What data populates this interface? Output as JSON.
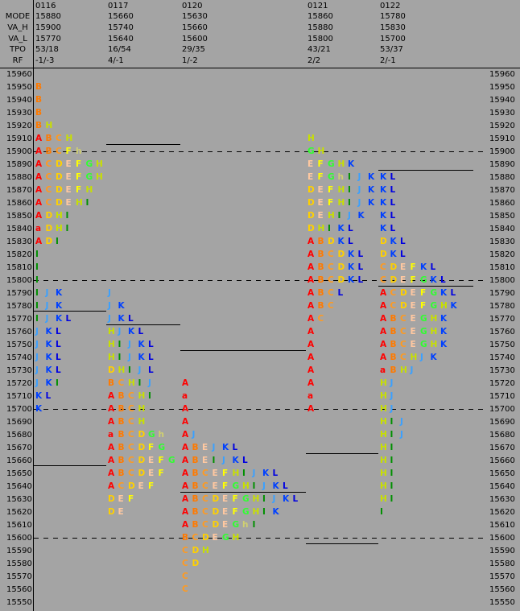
{
  "header_labels": [
    "MODE",
    "VA_H",
    "VA_L",
    "TPO",
    "RF"
  ],
  "letter_colors": {
    "A": "#ff0000",
    "a": "#ff0000",
    "B": "#ff7a00",
    "C": "#ff9a20",
    "D": "#ffd000",
    "E": "#ffc8a0",
    "F": "#ffff00",
    "G": "#30ff30",
    "H": "#c8e000",
    "h": "#d0d070",
    "I": "#009000",
    "J": "#3aa0ff",
    "K": "#0040ff",
    "L": "#0000e0"
  },
  "prices": [
    15960,
    15950,
    15940,
    15930,
    15920,
    15910,
    15900,
    15890,
    15880,
    15870,
    15860,
    15850,
    15840,
    15830,
    15820,
    15810,
    15800,
    15790,
    15780,
    15770,
    15760,
    15750,
    15740,
    15730,
    15720,
    15710,
    15700,
    15690,
    15680,
    15670,
    15660,
    15650,
    15640,
    15630,
    15620,
    15610,
    15600,
    15590,
    15580,
    15570,
    15560,
    15550
  ],
  "profiles": [
    {
      "date": "0116",
      "stats": [
        "15880",
        "15900",
        "15770",
        "53/18",
        "-1/-3"
      ],
      "rows": [
        null,
        "B",
        "B",
        "B",
        "BH",
        "ABCH",
        "ABCFh",
        "ACDEFGH",
        "ACDEFGH",
        "ACDEFH",
        "ACDEHI",
        "ADHI",
        "aDHI",
        "ADI",
        "I",
        "I",
        "I",
        "IJK",
        "IJK",
        "IJKL",
        "JKL",
        "JKL",
        "JKL",
        "JKL",
        "JKI",
        "KL",
        "K",
        null,
        null,
        null,
        null,
        null,
        null,
        null,
        null,
        null,
        null,
        null,
        null,
        null,
        null,
        null
      ]
    },
    {
      "date": "0117",
      "stats": [
        "15660",
        "15740",
        "15640",
        "16/54",
        "4/-1"
      ],
      "rows": [
        null,
        null,
        null,
        null,
        null,
        null,
        null,
        null,
        null,
        null,
        null,
        null,
        null,
        null,
        null,
        null,
        null,
        "J",
        "JK",
        "JKL",
        "HJKL",
        "HIJKL",
        "HIJKL",
        "DHIJL",
        "BCHIJ",
        "ABCHI",
        "ABCH",
        "ABCH",
        "aBCDGh",
        "ABCDFG",
        "ABCDEFG",
        "ABCDEF",
        "ACDEF",
        "DEF",
        "DE",
        null,
        null,
        null,
        null,
        null,
        null,
        null
      ]
    },
    {
      "date": "0120",
      "stats": [
        "15630",
        "15660",
        "15600",
        "29/35",
        "1/-2"
      ],
      "rows": [
        null,
        null,
        null,
        null,
        null,
        null,
        null,
        null,
        null,
        null,
        null,
        null,
        null,
        null,
        null,
        null,
        null,
        null,
        null,
        null,
        null,
        null,
        null,
        null,
        "A",
        "a",
        "A",
        "A",
        "AJ",
        "ABEJKL",
        "ABEIJKL",
        "ABCEFHIJKL",
        "ABCEFGHIJKL",
        "ABCDEFGHIJKL",
        "ABCDEFGHIK",
        "ABCDEGhI",
        "BCDEGH",
        "CDH",
        "CD",
        "C",
        "C",
        null
      ]
    },
    {
      "date": "0121",
      "stats": [
        "15860",
        "15880",
        "15800",
        "43/21",
        "2/2"
      ],
      "rows": [
        null,
        null,
        null,
        null,
        null,
        "H",
        "GH",
        "EFGHK",
        "EFGhIJK",
        "DEFHIJK",
        "DEFHIJK",
        "DEHIJK",
        "DHIKL",
        "ABDKL",
        "ABCDKL",
        "ABCDKL",
        "ABCDKL",
        "ABCL",
        "ABC",
        "AC",
        "A",
        "A",
        "A",
        "A",
        "A",
        "a",
        "A",
        null,
        null,
        null,
        null,
        null,
        null,
        null,
        null,
        null,
        null,
        null,
        null,
        null,
        null,
        null
      ]
    },
    {
      "date": "0122",
      "stats": [
        "15780",
        "15830",
        "15700",
        "53/37",
        "2/-1"
      ],
      "rows": [
        null,
        null,
        null,
        null,
        null,
        null,
        null,
        null,
        "KL",
        "KL",
        "KL",
        "KL",
        "KL",
        "DKL",
        "DKL",
        "CDEFKL",
        "CDEFGKL",
        "ACDEFGKL",
        "ACDEFGHK",
        "ABCEGHK",
        "ABCEGHK",
        "ABCEGHK",
        "ABCHJK",
        "aBHJ",
        "HJ",
        "HJ",
        "HJ",
        "HIJ",
        "HIJ",
        "HI",
        "HI",
        "HI",
        "HI",
        "HI",
        "I",
        null,
        null,
        null,
        null,
        null,
        null,
        null
      ]
    }
  ]
}
